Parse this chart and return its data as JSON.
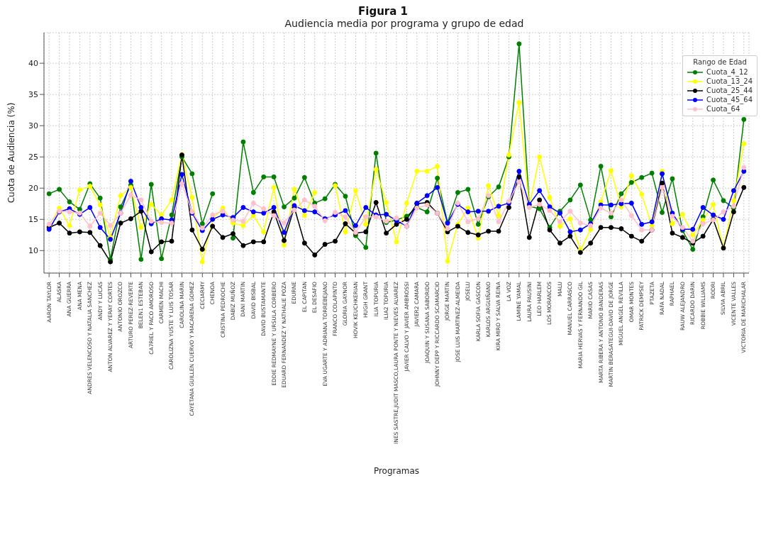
{
  "chart_data": {
    "type": "line",
    "title": "Figura 1",
    "subtitle": "Audiencia media por programa y grupo de edad",
    "xlabel": "Programas",
    "ylabel": "Cuota de Audiencia (%)",
    "legend_title": "Rango de Edad",
    "categories": [
      "AARON TAYLOR",
      "ALASKA",
      "ANA GUERRA",
      "ANA MENA",
      "ANDRES VELENCOSO Y NATALIA SANCHEZ",
      "ANDY Y LUCAS",
      "ANTON ALVAREZ Y YERAY CORTES",
      "ANTONIO OROZCO",
      "ARTURO PEREZ-REVERTE",
      "BELEN1 ESTEBAN",
      "CA7RIEL Y PACO AMOROSO",
      "CARMEN MACHI",
      "CAROLIZNA YUSTE Y LUIS TOSAR",
      "CAROLINA MARIN",
      "CAYETANA GUILLEN CUERVO Y MACARENA GOMEZ",
      "CECIARMY",
      "CHENOA",
      "CRISTINA PEDROCHE",
      "DABIZ MUÑOZ",
      "DANI MARTIN",
      "DAVID BISBAL",
      "DAVID BUSTAMANTE",
      "EDDIE REDMAYNE Y URSULA CORBERO",
      "EDUARD FERNANDEZ Y NATHALIE POZA",
      "EDURNE",
      "EL CAPITAN",
      "EL DESAFIO",
      "EVA UGARTE Y ADRIANA TORREBEJANO",
      "FRANCO COLAPINTO",
      "GLORIA GAYNOR",
      "HOVIK KEUCHKERIAN",
      "HUGH GRANT",
      "ILIA TOPURIA",
      "ILIA2 TOPURIA",
      "INES SASTRE,JUDIT MASCO,LAURA PONTE Y NIEVES ALVAREZ",
      "JAVIER CALVO Y JAVIER AMBROSSI",
      "JAVIER2 CAMARA",
      "JOAQUIN Y SUSANA SABORIDO",
      "JOHNNY DEPP Y RICCARDO SCAMARCIO",
      "JORGE MARTIN",
      "JOSE LUIS MARTINEZ-ALMEIDA",
      "JOSELU",
      "KARLA SOFIA GASCON",
      "KARLOS ARGUIÑANO",
      "KIRA MIRO Y SALVA REINA",
      "LA VOZ",
      "LAMINE YAMAL",
      "LAURA PAUSINI",
      "LEO HARLEM",
      "LOS MORANCOS",
      "MALU",
      "MANUEL CARRASCO",
      "MARIA HERVAS Y FERNANDO GIL",
      "MARIO CASAS",
      "MARTA RIBERA Y ANTONIO BANDERAS",
      "MARTIN BERASATEGUI-DAVID DE JORGE",
      "MIGUEL ANGEL REVILLA",
      "OMAR MONTES",
      "PATRICK DEMPSEY",
      "PTAZETA",
      "RAFA NADAL",
      "RAPHAEL",
      "RAUW ALEJANDRO",
      "RICARDO DARIN",
      "ROBBIE WILLIAMS",
      "RODRI",
      "SILVIA ABRIL",
      "VICENTE VALLES",
      "VICTORIA DE MARICHALAR"
    ],
    "series": [
      {
        "name": "Cuota_4_12",
        "color": "#008000",
        "values": [
          19.1,
          19.8,
          17.8,
          16.6,
          20.7,
          18.4,
          8.6,
          17.0,
          20.5,
          8.6,
          20.6,
          8.7,
          15.7,
          25.0,
          22.3,
          14.3,
          19.1,
          null,
          12.0,
          27.4,
          19.3,
          21.8,
          21.8,
          17.0,
          18.4,
          21.7,
          17.6,
          18.3,
          20.6,
          18.7,
          12.4,
          10.5,
          25.6,
          14.5,
          14.9,
          15.5,
          16.9,
          16.2,
          21.6,
          14.5,
          19.3,
          19.8,
          14.2,
          18.6,
          20.2,
          25.0,
          43.1,
          17.1,
          16.7,
          13.7,
          16.3,
          18.1,
          20.5,
          14.9,
          23.5,
          15.4,
          19.1,
          20.9,
          21.7,
          22.4,
          16.1,
          21.5,
          13.2,
          10.2,
          15.4,
          21.3,
          18.0,
          16.8,
          31.0
        ]
      },
      {
        "name": "Cuota_13_24",
        "color": "#ffff00",
        "values": [
          13.9,
          16.8,
          14.0,
          19.7,
          20.3,
          17.3,
          12.1,
          18.8,
          20.1,
          13.7,
          17.4,
          15.7,
          18.1,
          25.4,
          18.5,
          8.2,
          15.1,
          16.8,
          14.4,
          14.0,
          15.6,
          13.0,
          20.1,
          10.9,
          19.8,
          15.6,
          19.3,
          null,
          20.4,
          13.0,
          19.6,
          14.2,
          23.0,
          17.7,
          11.4,
          17.6,
          22.7,
          22.7,
          23.5,
          8.3,
          14.2,
          16.8,
          12.0,
          20.4,
          15.6,
          25.3,
          33.7,
          17.1,
          25.0,
          18.5,
          13.9,
          15.1,
          10.1,
          13.4,
          17.8,
          22.8,
          17.0,
          22.0,
          19.0,
          14.0,
          22.7,
          14.3,
          15.8,
          12.5,
          14.9,
          17.4,
          10.4,
          18.0,
          27.1
        ]
      },
      {
        "name": "Cuota_25_44",
        "color": "#000000",
        "values": [
          13.7,
          14.4,
          12.8,
          13.0,
          12.9,
          10.8,
          8.2,
          14.4,
          15.1,
          16.3,
          9.8,
          11.4,
          11.5,
          25.3,
          13.3,
          10.2,
          13.9,
          12.1,
          12.7,
          10.8,
          11.4,
          11.4,
          16.2,
          11.6,
          16.9,
          11.2,
          9.3,
          11.0,
          11.5,
          14.3,
          12.8,
          13.0,
          17.7,
          12.8,
          14.2,
          15.0,
          17.5,
          17.7,
          16.0,
          13.0,
          13.9,
          12.9,
          12.5,
          13.1,
          13.1,
          16.9,
          21.8,
          12.1,
          18.1,
          13.3,
          11.2,
          12.3,
          9.7,
          11.2,
          13.7,
          13.7,
          13.5,
          12.3,
          11.5,
          13.3,
          20.8,
          12.8,
          12.1,
          11.2,
          12.3,
          15.0,
          10.4,
          16.2,
          20.1
        ]
      },
      {
        "name": "Cuota_45_64",
        "color": "#0000ff",
        "values": [
          13.4,
          16.2,
          16.7,
          15.8,
          16.9,
          13.7,
          11.8,
          16.0,
          21.1,
          16.9,
          14.3,
          15.1,
          14.9,
          22.2,
          16.0,
          13.2,
          15.0,
          15.7,
          15.3,
          16.9,
          16.2,
          16.0,
          16.9,
          12.9,
          17.2,
          16.4,
          16.2,
          15.1,
          15.7,
          16.4,
          14.0,
          16.9,
          15.7,
          15.8,
          14.8,
          13.9,
          17.6,
          18.8,
          20.1,
          14.4,
          17.4,
          16.2,
          16.3,
          16.3,
          17.1,
          17.6,
          22.7,
          17.4,
          19.6,
          17.0,
          16.0,
          13.0,
          13.3,
          14.3,
          17.3,
          17.3,
          17.5,
          17.6,
          14.2,
          14.6,
          22.3,
          16.0,
          13.4,
          13.4,
          16.9,
          15.7,
          15.0,
          19.6,
          22.7
        ]
      },
      {
        "name": "Cuota_64",
        "color": "#ffc0cb",
        "values": [
          14.2,
          16.3,
          16.2,
          16.0,
          13.9,
          16.0,
          14.0,
          16.0,
          18.9,
          18.1,
          14.7,
          14.5,
          14.4,
          20.7,
          16.2,
          13.6,
          15.7,
          16.3,
          14.9,
          14.7,
          17.6,
          16.7,
          15.6,
          14.4,
          16.5,
          18.1,
          17.1,
          14.8,
          16.1,
          15.4,
          12.9,
          15.4,
          15.4,
          14.7,
          15.2,
          13.9,
          16.8,
          17.3,
          16.0,
          13.5,
          17.6,
          14.6,
          15.1,
          18.8,
          14.6,
          17.9,
          21.0,
          16.9,
          17.4,
          16.4,
          14.6,
          16.3,
          14.4,
          14.0,
          16.8,
          16.0,
          18.1,
          15.6,
          13.3,
          13.3,
          20.1,
          15.5,
          13.7,
          11.5,
          14.3,
          14.9,
          16.2,
          17.1,
          23.3
        ]
      }
    ],
    "ylim": [
      6.4,
      44.9
    ],
    "yticks": [
      10,
      15,
      20,
      25,
      30,
      35,
      40
    ],
    "grid": true,
    "legend": "top right",
    "marker": "circle",
    "line_style": "solid"
  }
}
